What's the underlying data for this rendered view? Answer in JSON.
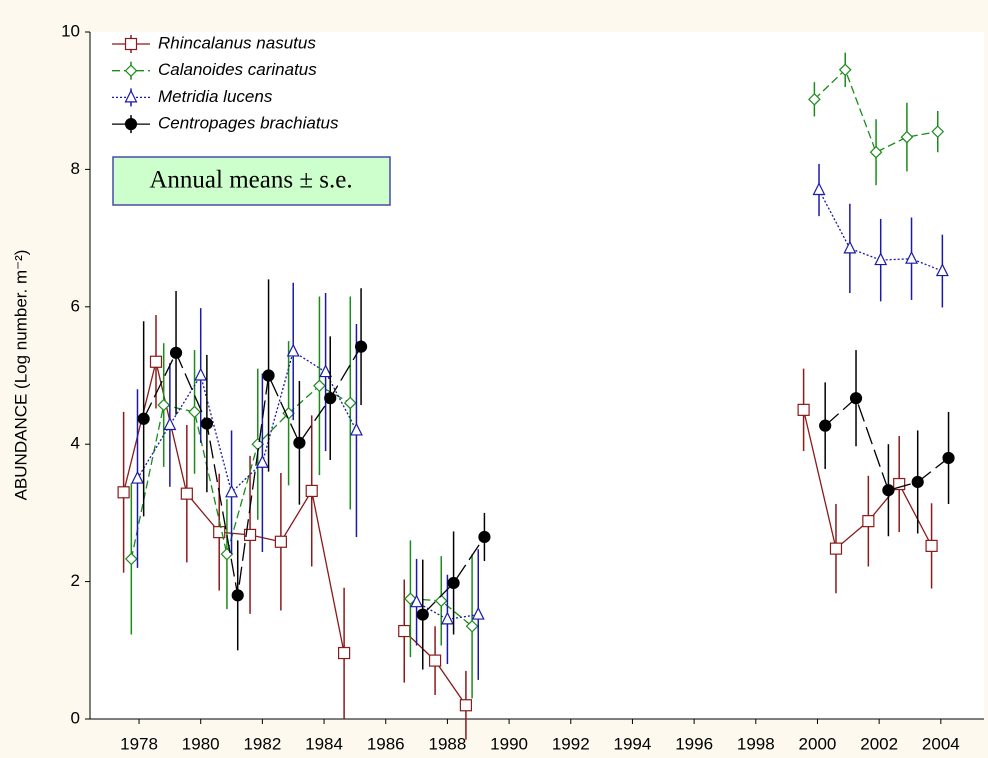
{
  "chart_data": {
    "type": "errorline",
    "y_label": "ABUNDANCE (Log number. m⁻²)",
    "annotation": "Annual means ± s.e.",
    "xlim": [
      1976.41,
      2005.4
    ],
    "ylim": [
      0,
      10
    ],
    "xticks": [
      1978,
      1980,
      1982,
      1984,
      1986,
      1988,
      1990,
      1992,
      1994,
      1996,
      1998,
      2000,
      2002,
      2004
    ],
    "yticks": [
      0,
      2,
      4,
      6,
      8,
      10
    ],
    "legend": "top-left",
    "series": [
      {
        "name": "Rhincalanus nasutus",
        "color": "#8b1a1a",
        "marker": "square",
        "line_style": "solid",
        "x": [
          1977.5,
          1978.55,
          1979.55,
          1980.6,
          1981.6,
          1982.6,
          1983.6,
          1984.65,
          null,
          1986.6,
          1987.6,
          1988.6,
          null,
          1999.55,
          2000.6,
          2001.65,
          2002.65,
          2003.7
        ],
        "values": [
          3.3,
          5.2,
          3.28,
          2.72,
          2.68,
          2.58,
          3.32,
          0.96,
          null,
          1.28,
          0.85,
          0.2,
          null,
          4.5,
          2.48,
          2.88,
          3.42,
          2.52
        ],
        "errors": [
          1.17,
          0.68,
          1.0,
          0.85,
          1.15,
          1.0,
          1.1,
          0.95,
          null,
          0.75,
          0.5,
          0.5,
          null,
          0.6,
          0.65,
          0.66,
          0.7,
          0.62
        ]
      },
      {
        "name": "Calanoides carinatus",
        "color": "#1a8c1a",
        "marker": "diamond",
        "line_style": "dashed",
        "x": [
          1977.75,
          1978.8,
          1979.8,
          1980.85,
          1981.85,
          1982.85,
          1983.85,
          1984.85,
          null,
          1986.8,
          1987.8,
          1988.8,
          null,
          1999.9,
          2000.9,
          2001.9,
          2002.9,
          2003.9
        ],
        "values": [
          2.33,
          4.57,
          4.47,
          2.4,
          4.0,
          4.45,
          4.85,
          4.6,
          null,
          1.75,
          1.72,
          1.35,
          null,
          9.02,
          9.45,
          8.25,
          8.47,
          8.55
        ],
        "errors": [
          1.1,
          0.9,
          0.9,
          0.8,
          1.1,
          1.05,
          1.3,
          1.55,
          null,
          0.85,
          0.65,
          1.05,
          null,
          0.25,
          0.25,
          0.48,
          0.5,
          0.3
        ]
      },
      {
        "name": "Metridia lucens",
        "color": "#1a1aaa",
        "marker": "triangle",
        "line_style": "dotted",
        "x": [
          1977.95,
          1979.0,
          1980.0,
          1981.0,
          1982.0,
          1983.0,
          1984.05,
          1985.05,
          null,
          1987.0,
          1988.0,
          1989.0,
          null,
          2000.05,
          2001.05,
          2002.05,
          2003.05,
          2004.05
        ],
        "values": [
          3.5,
          4.28,
          5.0,
          3.3,
          3.73,
          5.35,
          5.05,
          4.2,
          null,
          1.7,
          1.45,
          1.52,
          null,
          7.7,
          6.85,
          6.68,
          6.7,
          6.52
        ],
        "errors": [
          1.3,
          0.9,
          0.98,
          0.9,
          1.3,
          1.0,
          1.15,
          1.55,
          null,
          0.63,
          0.65,
          0.95,
          null,
          0.38,
          0.65,
          0.6,
          0.6,
          0.53
        ]
      },
      {
        "name": "Centropages brachiatus",
        "color": "#000000",
        "marker": "circle",
        "line_style": "longdash",
        "x": [
          1978.15,
          1979.2,
          1980.2,
          1981.2,
          1982.2,
          1983.2,
          1984.2,
          1985.2,
          null,
          1987.2,
          1988.2,
          1989.2,
          null,
          2000.25,
          2001.25,
          2002.3,
          2003.25,
          2004.25
        ],
        "values": [
          4.37,
          5.33,
          4.3,
          1.8,
          5.0,
          4.02,
          4.67,
          5.42,
          null,
          1.52,
          1.98,
          2.65,
          null,
          4.27,
          4.67,
          3.33,
          3.45,
          3.8
        ],
        "errors": [
          1.42,
          0.9,
          1.0,
          0.8,
          1.4,
          0.9,
          0.9,
          0.85,
          null,
          0.8,
          0.75,
          0.35,
          null,
          0.63,
          0.7,
          0.67,
          0.75,
          0.67
        ]
      }
    ]
  }
}
